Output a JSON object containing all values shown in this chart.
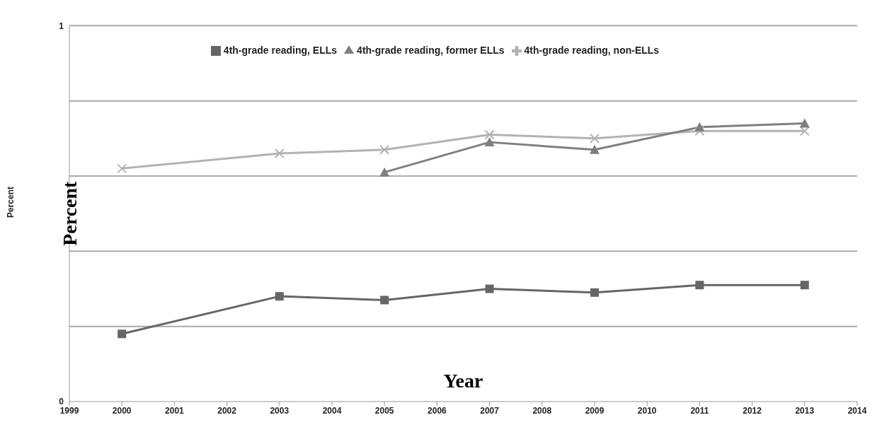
{
  "chart_data": {
    "type": "line",
    "xlabel": "Year",
    "ylabel": "Percent",
    "annotations": [
      "Percent"
    ],
    "x": [
      2000,
      2003,
      2005,
      2007,
      2009,
      2011,
      2013
    ],
    "series": [
      {
        "name": "4th-grade reading, non-ELLs",
        "color": "#b3b3b3",
        "marker": "cross",
        "values": [
          0.62,
          0.66,
          0.67,
          0.71,
          0.7,
          0.72,
          0.72
        ]
      },
      {
        "name": "4th-grade reading, ELLs",
        "color": "#666666",
        "marker": "square",
        "values": [
          0.18,
          0.28,
          0.27,
          0.3,
          0.29,
          0.31,
          0.31
        ]
      },
      {
        "name": "4th-grade reading, former ELLs",
        "color": "#7f7f7f",
        "marker": "triangle",
        "values": [
          null,
          null,
          0.61,
          0.69,
          0.67,
          0.73,
          0.74
        ]
      }
    ],
    "xlim": [
      1999,
      2014
    ],
    "xticks": [
      1999,
      2000,
      2001,
      2002,
      2003,
      2004,
      2005,
      2006,
      2007,
      2008,
      2009,
      2010,
      2011,
      2012,
      2013,
      2014
    ],
    "ylim": [
      0,
      1
    ],
    "yticks": [
      0,
      {
        "value": 0.2,
        "label": null
      },
      {
        "value": 0.4,
        "label": null
      },
      {
        "value": 0.6,
        "label": null
      },
      {
        "value": 0.8,
        "label": null
      },
      1
    ],
    "grid": "y",
    "legend": "top",
    "line_style": "solid"
  }
}
